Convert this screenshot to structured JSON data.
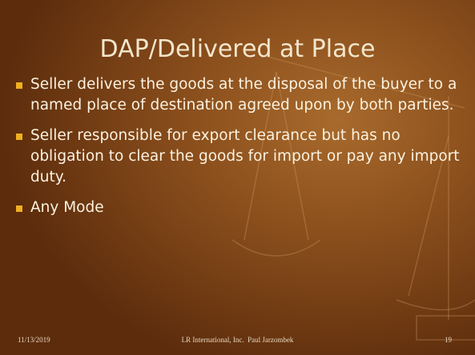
{
  "title": "DAP/Delivered at Place",
  "bullets": [
    "Seller delivers the goods at the disposal of the buyer to a named place of destination agreed upon by both parties.",
    "Seller responsible for export clearance but has no obligation to clear the goods for import or pay any import duty.",
    "Any Mode"
  ],
  "footer": {
    "date": "11/13/2019",
    "center": "LR International, Inc.  Paul Jarzombek",
    "page": "19"
  }
}
